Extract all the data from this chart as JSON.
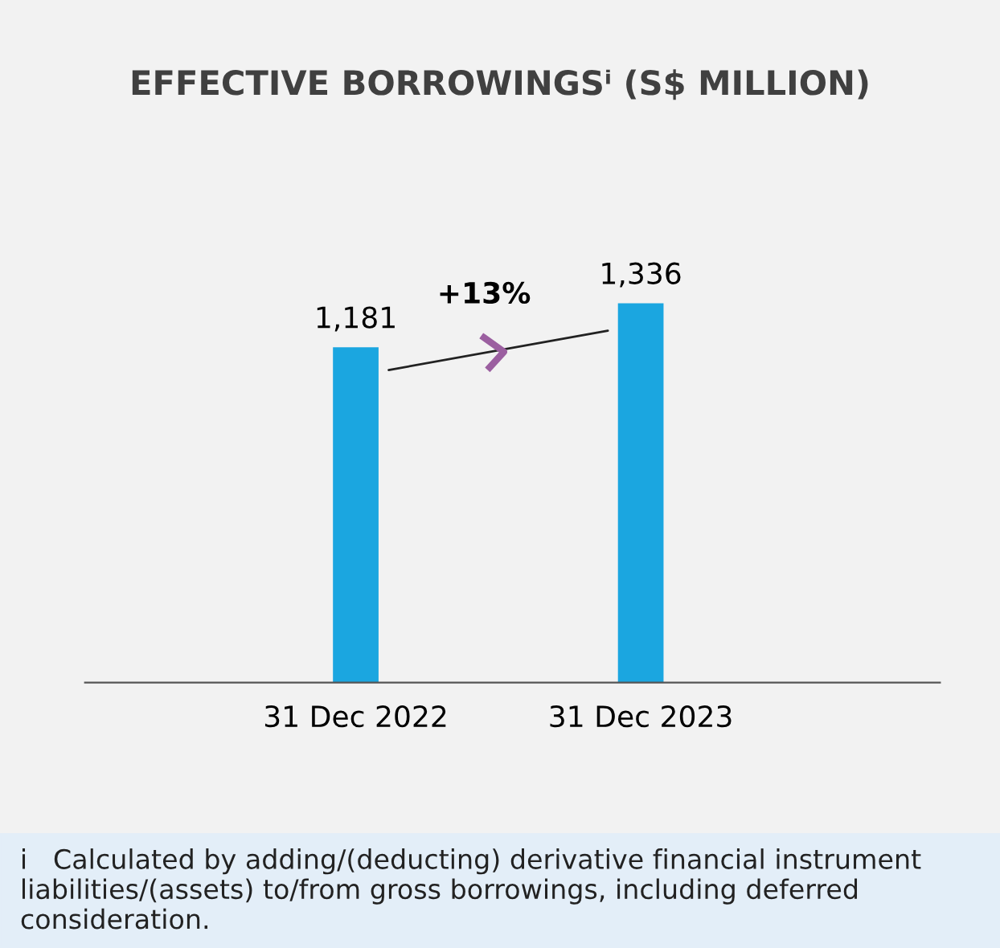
{
  "chart_data": {
    "type": "bar",
    "title": "EFFECTIVE BORROWINGSⁱ (S$ MILLION)",
    "categories": [
      "31 Dec 2022",
      "31 Dec 2023"
    ],
    "values": [
      1181,
      1336
    ],
    "color": "#1ba6e0",
    "value_labels": [
      "1,181",
      "1,336"
    ],
    "grid": false,
    "annotations": [
      "+13%",
      "i   Calculated by adding/(deducting) derivative financial instrument liabilities/(assets) to/from gross borrowings, including deferred consideration."
    ]
  }
}
